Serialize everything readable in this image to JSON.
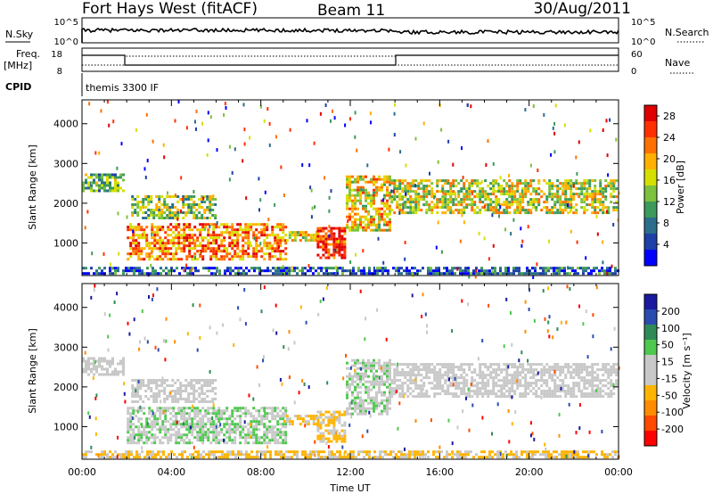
{
  "header": {
    "title": "Fort Hays West (fitACF)",
    "beam": "Beam 11",
    "date": "30/Aug/2011"
  },
  "top_panel": {
    "left_label": "N.Sky",
    "left_ticks": [
      "10^5",
      "10^0"
    ],
    "right_label": "N.Search",
    "right_ticks": [
      "10^5",
      "10^0"
    ]
  },
  "freq_panel": {
    "left_label_1": "Freq.",
    "left_label_2": "[MHz]",
    "left_ticks": [
      "18",
      "8"
    ],
    "right_label": "Nave",
    "right_ticks": [
      "60",
      "0"
    ],
    "cpid_label": "CPID",
    "cpid_value": "themis 3300 IF"
  },
  "colors": {
    "power_scale": [
      "#0000ff",
      "#1c3fa8",
      "#2a6e8c",
      "#3c9a5a",
      "#7cc23c",
      "#d6e000",
      "#ffb000",
      "#ff7000",
      "#ff3000",
      "#e00000"
    ],
    "velocity_scale": [
      "#ff0000",
      "#ff4a00",
      "#ff8c00",
      "#ffb400",
      "#c8c8c8",
      "#c8c8c8",
      "#4ec94e",
      "#2e8b57",
      "#2a4cb0",
      "#1a1aa0"
    ],
    "velocity_gray": "#c8c8c8"
  },
  "chart_data": [
    {
      "type": "heatmap",
      "title": "Power",
      "ylabel": "Slant Range [km]",
      "xlabel": "Time UT",
      "x_ticks": [
        "00:00",
        "04:00",
        "08:00",
        "12:00",
        "16:00",
        "20:00",
        "00:00"
      ],
      "y_ticks": [
        1000,
        2000,
        3000,
        4000
      ],
      "ylim": [
        180,
        4600
      ],
      "xlim_hours": [
        0,
        24
      ],
      "colorbar": {
        "label": "Power [dB]",
        "ticks": [
          4,
          8,
          12,
          16,
          20,
          24,
          28
        ],
        "range": [
          0,
          30
        ]
      },
      "echo_regions": [
        {
          "t0": 0.0,
          "t1": 1.9,
          "r0": 2250,
          "r1": 2750,
          "value": 12
        },
        {
          "t0": 2.0,
          "t1": 9.2,
          "r0": 550,
          "r1": 1500,
          "value": 22
        },
        {
          "t0": 2.2,
          "t1": 6.0,
          "r0": 1600,
          "r1": 2200,
          "value": 14
        },
        {
          "t0": 9.0,
          "t1": 10.5,
          "r0": 1000,
          "r1": 1300,
          "value": 18
        },
        {
          "t0": 10.5,
          "t1": 11.8,
          "r0": 600,
          "r1": 1400,
          "value": 26
        },
        {
          "t0": 11.8,
          "t1": 13.8,
          "r0": 1300,
          "r1": 2700,
          "value": 18
        },
        {
          "t0": 13.8,
          "t1": 24.0,
          "r0": 1700,
          "r1": 2600,
          "value": 16
        },
        {
          "t0": 0.0,
          "t1": 24.0,
          "r0": 200,
          "r1": 400,
          "value": 6
        }
      ]
    },
    {
      "type": "heatmap",
      "title": "Velocity",
      "ylabel": "Slant Range [km]",
      "xlabel": "Time UT",
      "x_ticks": [
        "00:00",
        "04:00",
        "08:00",
        "12:00",
        "16:00",
        "20:00",
        "00:00"
      ],
      "y_ticks": [
        1000,
        2000,
        3000,
        4000
      ],
      "ylim": [
        180,
        4600
      ],
      "xlim_hours": [
        0,
        24
      ],
      "colorbar": {
        "label": "Velocity [m s⁻¹]",
        "ticks": [
          200,
          100,
          50,
          15,
          -15,
          -50,
          -100,
          -200
        ],
        "range": [
          -250,
          250
        ]
      },
      "echo_regions": [
        {
          "t0": 0.0,
          "t1": 1.9,
          "r0": 2250,
          "r1": 2750,
          "value": 0
        },
        {
          "t0": 2.0,
          "t1": 9.2,
          "r0": 550,
          "r1": 1500,
          "value": 40
        },
        {
          "t0": 2.2,
          "t1": 6.0,
          "r0": 1600,
          "r1": 2200,
          "value": 0
        },
        {
          "t0": 9.0,
          "t1": 10.5,
          "r0": 1000,
          "r1": 1300,
          "value": -60
        },
        {
          "t0": 10.5,
          "t1": 11.8,
          "r0": 600,
          "r1": 1400,
          "value": -60
        },
        {
          "t0": 11.8,
          "t1": 13.8,
          "r0": 1300,
          "r1": 2700,
          "value": 30
        },
        {
          "t0": 13.8,
          "t1": 24.0,
          "r0": 1700,
          "r1": 2600,
          "value": 0
        },
        {
          "t0": 0.0,
          "t1": 24.0,
          "r0": 200,
          "r1": 400,
          "value": -60
        }
      ]
    }
  ]
}
